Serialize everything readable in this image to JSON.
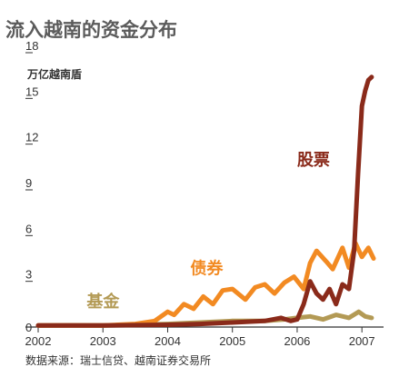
{
  "chart_data": {
    "type": "line",
    "title": "流入越南的资金分布",
    "ylabel": "万亿越南盾",
    "source": "数据来源：瑞士信贷、越南证券交易所",
    "ylim": [
      0,
      18
    ],
    "xlim": [
      2002,
      2007.25
    ],
    "yticks": [
      0,
      3,
      6,
      9,
      12,
      15,
      18
    ],
    "ytick_labels": [
      "0",
      "3",
      "6",
      "9",
      "12",
      "15",
      "18"
    ],
    "xticks": [
      2002,
      2003,
      2004,
      2005,
      2006,
      2007
    ],
    "xtick_labels": [
      "2002",
      "2003",
      "2004",
      "2005",
      "2006",
      "2007"
    ],
    "grid": false,
    "series": [
      {
        "name": "基金",
        "color": "#b39a55",
        "x": [
          2002.0,
          2002.5,
          2003.0,
          2003.5,
          2004.0,
          2004.5,
          2005.0,
          2005.5,
          2005.8,
          2006.0,
          2006.2,
          2006.4,
          2006.6,
          2006.8,
          2006.95,
          2007.05,
          2007.15
        ],
        "y": [
          0.1,
          0.12,
          0.1,
          0.15,
          0.2,
          0.3,
          0.4,
          0.4,
          0.5,
          0.6,
          0.7,
          0.5,
          0.8,
          0.6,
          1.0,
          0.7,
          0.6
        ]
      },
      {
        "name": "债券",
        "color": "#f28a22",
        "x": [
          2002.0,
          2003.0,
          2003.5,
          2003.8,
          2004.0,
          2004.1,
          2004.25,
          2004.4,
          2004.55,
          2004.7,
          2004.85,
          2005.0,
          2005.2,
          2005.35,
          2005.5,
          2005.65,
          2005.8,
          2005.95,
          2006.1,
          2006.2,
          2006.3,
          2006.45,
          2006.55,
          2006.7,
          2006.8,
          2006.9,
          2007.0,
          2007.1,
          2007.18
        ],
        "y": [
          0.1,
          0.1,
          0.2,
          0.4,
          1.0,
          0.8,
          1.5,
          1.2,
          2.0,
          1.5,
          2.4,
          2.5,
          1.8,
          2.6,
          2.8,
          2.2,
          2.9,
          3.3,
          2.5,
          4.2,
          5.0,
          4.3,
          3.8,
          5.2,
          3.9,
          5.5,
          4.6,
          5.2,
          4.5
        ]
      },
      {
        "name": "股票",
        "color": "#8a2a1a",
        "x": [
          2002.0,
          2003.0,
          2004.0,
          2004.5,
          2005.0,
          2005.5,
          2005.75,
          2005.9,
          2006.0,
          2006.1,
          2006.2,
          2006.3,
          2006.4,
          2006.5,
          2006.6,
          2006.7,
          2006.8,
          2006.88,
          2006.94,
          2007.0,
          2007.05,
          2007.1,
          2007.15
        ],
        "y": [
          0.1,
          0.1,
          0.15,
          0.2,
          0.3,
          0.4,
          0.6,
          0.4,
          0.5,
          1.5,
          3.0,
          2.2,
          1.8,
          2.5,
          1.5,
          2.8,
          2.5,
          5.0,
          10.0,
          14.5,
          15.5,
          16.2,
          16.4
        ]
      }
    ]
  }
}
